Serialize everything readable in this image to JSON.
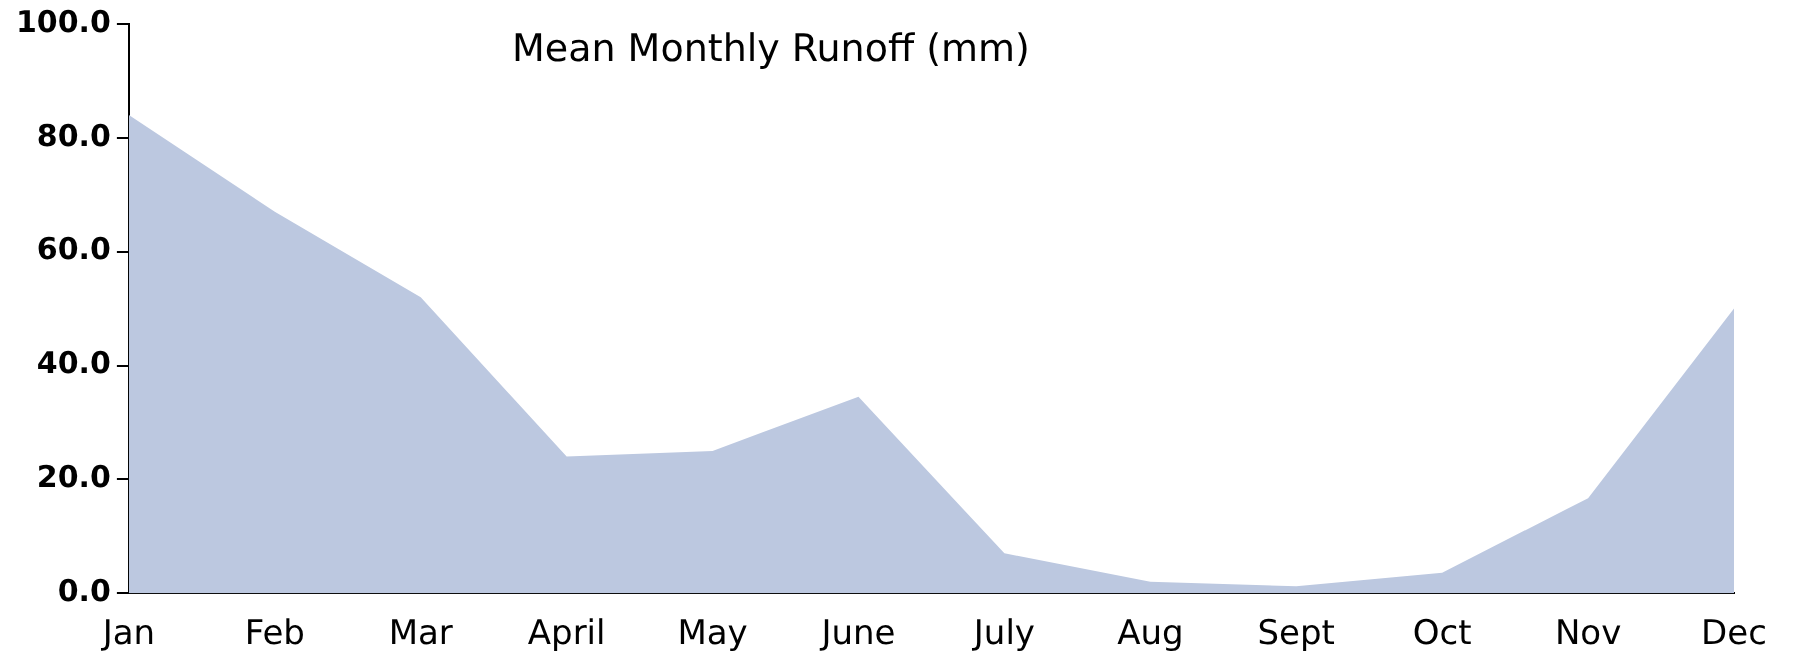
{
  "chart_data": {
    "type": "area",
    "title": "Mean Monthly Runoff (mm)",
    "categories": [
      "Jan",
      "Feb",
      "Mar",
      "April",
      "May",
      "June",
      "July",
      "Aug",
      "Sept",
      "Oct",
      "Nov",
      "Dec"
    ],
    "series": [
      {
        "color": "#bcc8e0",
        "values": [
          84,
          67,
          52,
          24,
          25,
          34.5,
          7,
          2,
          1.2,
          3.6,
          16.7,
          50
        ]
      }
    ],
    "ylim": [
      0,
      100
    ],
    "yticks": [
      {
        "value": 0,
        "label": "0.0"
      },
      {
        "value": 20,
        "label": "20.0"
      },
      {
        "value": 40,
        "label": "40.0"
      },
      {
        "value": 60,
        "label": "60.0"
      },
      {
        "value": 80,
        "label": "80.0"
      },
      {
        "value": 100,
        "label": "100.0"
      }
    ],
    "grid": false,
    "legend": false
  }
}
